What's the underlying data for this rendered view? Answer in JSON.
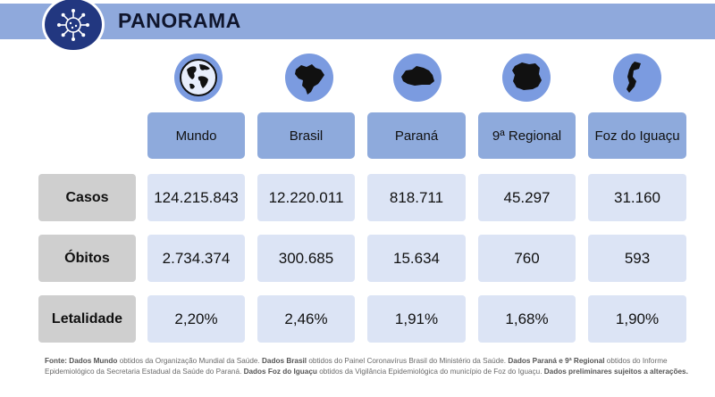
{
  "header": {
    "title": "PANORAMA",
    "logo_icon": "virus-icon"
  },
  "colors": {
    "accent": "#8eaadc",
    "brand": "#223780",
    "cell": "#dce4f5",
    "row_header": "#cfcfcf"
  },
  "columns": [
    {
      "key": "mundo",
      "label": "Mundo",
      "icon": "globe-icon"
    },
    {
      "key": "brasil",
      "label": "Brasil",
      "icon": "brazil-map-icon"
    },
    {
      "key": "parana",
      "label": "Paraná",
      "icon": "parana-map-icon"
    },
    {
      "key": "regional",
      "label": "9ª Regional",
      "icon": "regional-map-icon"
    },
    {
      "key": "foz",
      "label": "Foz do Iguaçu",
      "icon": "foz-map-icon"
    }
  ],
  "rows": [
    {
      "label": "Casos",
      "values": [
        "124.215.843",
        "12.220.011",
        "818.711",
        "45.297",
        "31.160"
      ]
    },
    {
      "label": "Óbitos",
      "values": [
        "2.734.374",
        "300.685",
        "15.634",
        "760",
        "593"
      ]
    },
    {
      "label": "Letalidade",
      "values": [
        "2,20%",
        "2,46%",
        "1,91%",
        "1,68%",
        "1,90%"
      ]
    }
  ],
  "footnote": {
    "parts": [
      {
        "b": true,
        "t": "Fonte: Dados Mundo"
      },
      {
        "b": false,
        "t": " obtidos da Organização Mundial da Saúde. "
      },
      {
        "b": true,
        "t": "Dados Brasil"
      },
      {
        "b": false,
        "t": " obtidos do Painel Coronavírus Brasil do Ministério da Saúde. "
      },
      {
        "b": true,
        "t": "Dados Paraná e 9ª Regional"
      },
      {
        "b": false,
        "t": " obtidos do Informe Epidemiológico da Secretaria Estadual da Saúde do Paraná. "
      },
      {
        "b": true,
        "t": "Dados Foz do Iguaçu"
      },
      {
        "b": false,
        "t": " obtidos da Vigilância Epidemiológica do município de Foz do Iguaçu. "
      },
      {
        "b": true,
        "t": "Dados preliminares sujeitos a alterações."
      }
    ]
  }
}
